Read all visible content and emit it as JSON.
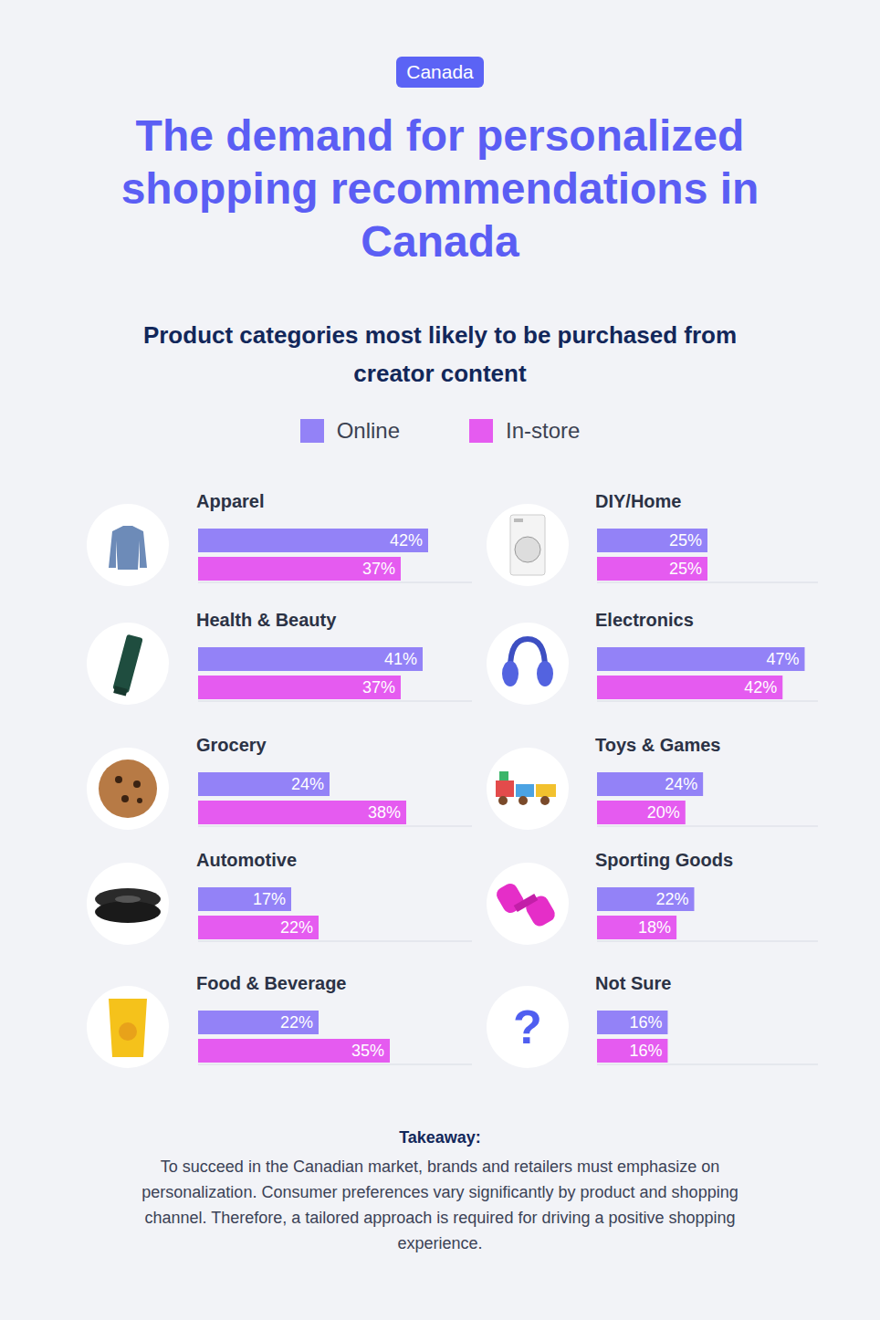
{
  "badge": "Canada",
  "title": "The demand for personalized shopping recommendations in Canada",
  "subtitle": "Product categories most likely to be purchased from creator content",
  "takeaway": {
    "heading": "Takeaway:",
    "text": "To succeed in the Canadian market, brands and retailers must emphasize on personalization. Consumer preferences vary significantly by product and shopping channel. Therefore, a tailored approach is required for driving a positive shopping experience."
  },
  "chart_data": [
    {
      "type": "bar",
      "title": "Apparel",
      "orientation": "horizontal",
      "data_labels": true,
      "tick_labels": false,
      "categories": [
        null
      ],
      "xlim": [
        0,
        50
      ],
      "series": [
        {
          "name": "Online",
          "color": "#9382f7",
          "values": [
            42
          ],
          "value_labels": [
            "42%"
          ]
        },
        {
          "name": "In-store",
          "color": "#e55bf0",
          "values": [
            37
          ],
          "value_labels": [
            "37%"
          ]
        }
      ]
    },
    {
      "type": "bar",
      "title": "Health & Beauty",
      "orientation": "horizontal",
      "data_labels": true,
      "tick_labels": false,
      "categories": [
        null
      ],
      "xlim": [
        0,
        50
      ],
      "series": [
        {
          "name": "Online",
          "color": "#9382f7",
          "values": [
            41
          ],
          "value_labels": [
            "41%"
          ]
        },
        {
          "name": "In-store",
          "color": "#e55bf0",
          "values": [
            37
          ],
          "value_labels": [
            "37%"
          ]
        }
      ]
    },
    {
      "type": "bar",
      "title": "Grocery",
      "orientation": "horizontal",
      "data_labels": true,
      "tick_labels": false,
      "categories": [
        null
      ],
      "xlim": [
        0,
        50
      ],
      "series": [
        {
          "name": "Online",
          "color": "#9382f7",
          "values": [
            24
          ],
          "value_labels": [
            "24%"
          ]
        },
        {
          "name": "In-store",
          "color": "#e55bf0",
          "values": [
            38
          ],
          "value_labels": [
            "38%"
          ]
        }
      ]
    },
    {
      "type": "bar",
      "title": "Automotive",
      "orientation": "horizontal",
      "data_labels": true,
      "tick_labels": false,
      "categories": [
        null
      ],
      "xlim": [
        0,
        50
      ],
      "series": [
        {
          "name": "Online",
          "color": "#9382f7",
          "values": [
            17
          ],
          "value_labels": [
            "17%"
          ]
        },
        {
          "name": "In-store",
          "color": "#e55bf0",
          "values": [
            22
          ],
          "value_labels": [
            "22%"
          ]
        }
      ]
    },
    {
      "type": "bar",
      "title": "Food & Beverage",
      "orientation": "horizontal",
      "data_labels": true,
      "tick_labels": false,
      "categories": [
        null
      ],
      "xlim": [
        0,
        50
      ],
      "series": [
        {
          "name": "Online",
          "color": "#9382f7",
          "values": [
            22
          ],
          "value_labels": [
            "22%"
          ]
        },
        {
          "name": "In-store",
          "color": "#e55bf0",
          "values": [
            35
          ],
          "value_labels": [
            "35%"
          ]
        }
      ]
    },
    {
      "type": "bar",
      "title": "DIY/Home",
      "orientation": "horizontal",
      "data_labels": true,
      "tick_labels": false,
      "categories": [
        null
      ],
      "xlim": [
        0,
        50
      ],
      "series": [
        {
          "name": "Online",
          "color": "#9382f7",
          "values": [
            25
          ],
          "value_labels": [
            "25%"
          ]
        },
        {
          "name": "In-store",
          "color": "#e55bf0",
          "values": [
            25
          ],
          "value_labels": [
            "25%"
          ]
        }
      ]
    },
    {
      "type": "bar",
      "title": "Electronics",
      "orientation": "horizontal",
      "data_labels": true,
      "tick_labels": false,
      "categories": [
        null
      ],
      "xlim": [
        0,
        50
      ],
      "series": [
        {
          "name": "Online",
          "color": "#9382f7",
          "values": [
            47
          ],
          "value_labels": [
            "47%"
          ]
        },
        {
          "name": "In-store",
          "color": "#e55bf0",
          "values": [
            42
          ],
          "value_labels": [
            "42%"
          ]
        }
      ]
    },
    {
      "type": "bar",
      "title": "Toys & Games",
      "orientation": "horizontal",
      "data_labels": true,
      "tick_labels": false,
      "categories": [
        null
      ],
      "xlim": [
        0,
        50
      ],
      "series": [
        {
          "name": "Online",
          "color": "#9382f7",
          "values": [
            24
          ],
          "value_labels": [
            "24%"
          ]
        },
        {
          "name": "In-store",
          "color": "#e55bf0",
          "values": [
            20
          ],
          "value_labels": [
            "20%"
          ]
        }
      ]
    },
    {
      "type": "bar",
      "title": "Sporting Goods",
      "orientation": "horizontal",
      "data_labels": true,
      "tick_labels": false,
      "categories": [
        null
      ],
      "xlim": [
        0,
        50
      ],
      "series": [
        {
          "name": "Online",
          "color": "#9382f7",
          "values": [
            22
          ],
          "value_labels": [
            "22%"
          ]
        },
        {
          "name": "In-store",
          "color": "#e55bf0",
          "values": [
            18
          ],
          "value_labels": [
            "18%"
          ]
        }
      ]
    },
    {
      "type": "bar",
      "title": "Not Sure",
      "orientation": "horizontal",
      "data_labels": true,
      "tick_labels": false,
      "categories": [
        null
      ],
      "xlim": [
        0,
        50
      ],
      "annotations": [
        "?"
      ],
      "series": [
        {
          "name": "Online",
          "color": "#9382f7",
          "values": [
            16
          ],
          "value_labels": [
            "16%"
          ]
        },
        {
          "name": "In-store",
          "color": "#e55bf0",
          "values": [
            16
          ],
          "value_labels": [
            "16%"
          ]
        }
      ]
    }
  ]
}
